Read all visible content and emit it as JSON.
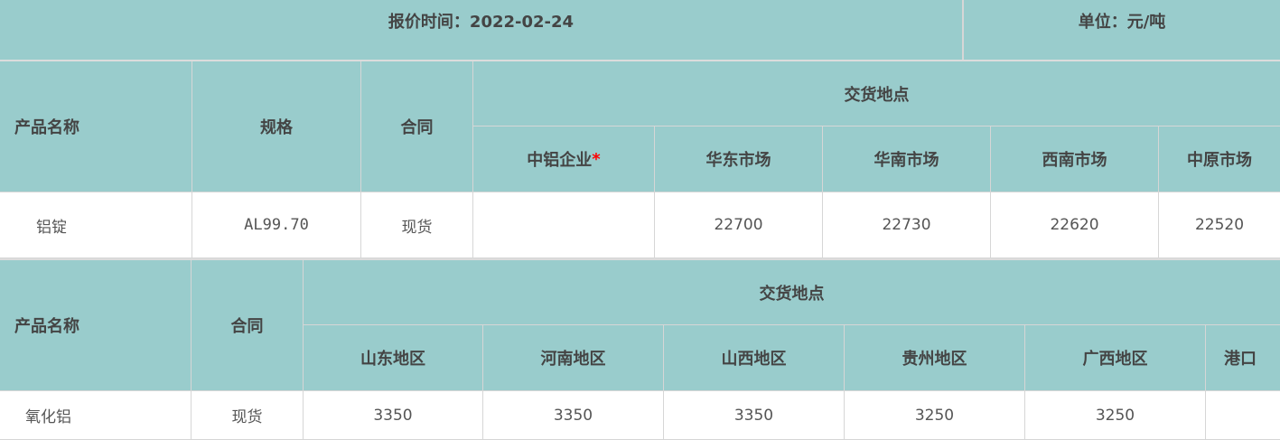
{
  "header": {
    "quote_time": "报价时间：2022-02-24",
    "unit": "单位：元/吨"
  },
  "table1": {
    "col_product": "产品名称",
    "col_spec": "规格",
    "col_contract": "合同",
    "col_delivery": "交货地点",
    "locations": [
      "中铝企业",
      "华东市场",
      "华南市场",
      "西南市场",
      "中原市场"
    ],
    "required_mark": "*",
    "rows": [
      {
        "product": "铝锭",
        "spec": "AL99.70",
        "contract": "现货",
        "prices": [
          "",
          "22700",
          "22730",
          "22620",
          "22520"
        ]
      }
    ]
  },
  "table2": {
    "col_product": "产品名称",
    "col_contract": "合同",
    "col_delivery": "交货地点",
    "locations": [
      "山东地区",
      "河南地区",
      "山西地区",
      "贵州地区",
      "广西地区",
      "港口"
    ],
    "rows": [
      {
        "product": "氧化铝",
        "contract": "现货",
        "prices": [
          "3350",
          "3350",
          "3350",
          "3250",
          "3250",
          ""
        ]
      }
    ]
  },
  "colors": {
    "header_bg": "#99cccc",
    "border": "#d6d6d6",
    "required_mark": "#ff0000"
  }
}
